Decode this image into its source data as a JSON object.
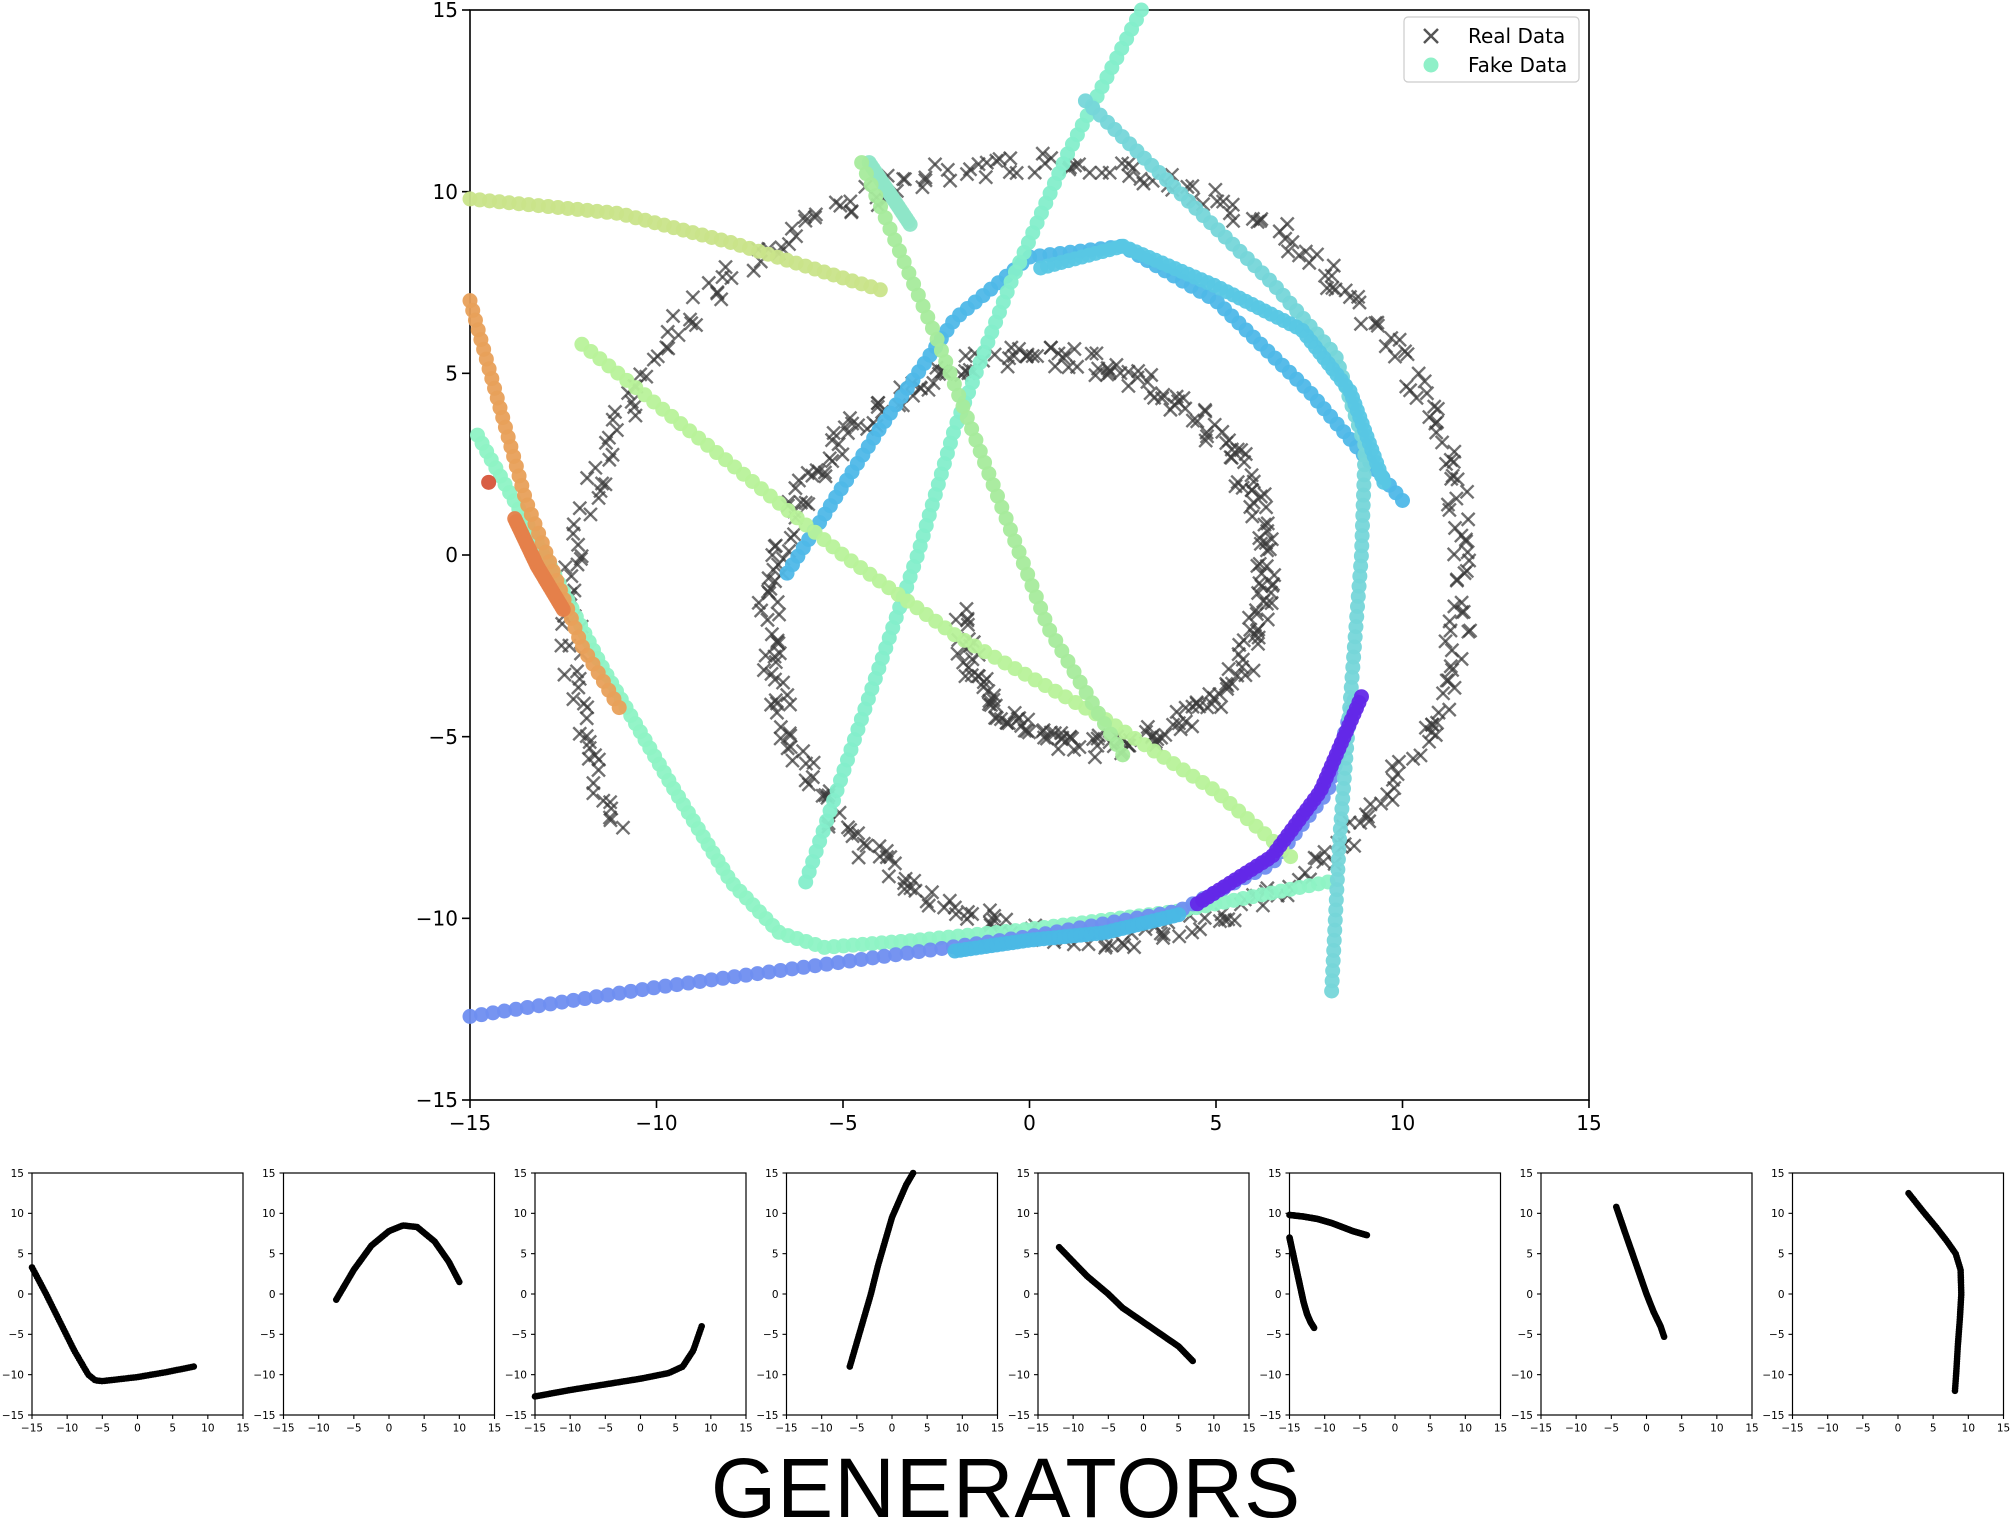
{
  "chart_data": [
    {
      "type": "scatter",
      "role": "main",
      "title": "",
      "xlabel": "",
      "ylabel": "",
      "xlim": [
        -15,
        15
      ],
      "ylim": [
        -15,
        15
      ],
      "xticks": [
        -15,
        -10,
        -5,
        0,
        5,
        10,
        15
      ],
      "yticks": [
        -15,
        -10,
        -5,
        0,
        5,
        10,
        15
      ],
      "grid": false,
      "legend": {
        "placement": "top-right",
        "entries": [
          {
            "name": "Real Data",
            "marker": "x",
            "color": "#555555"
          },
          {
            "name": "Fake Data",
            "marker": "o",
            "color": "#8ff0c8"
          }
        ]
      },
      "series": [
        {
          "name": "Real Data",
          "marker": "x",
          "color": "#3a3a3a",
          "shape": "spiral",
          "center": [
            1.0,
            -1.2
          ],
          "theta_range_rad": [
            3.3,
            16.2
          ],
          "radius_per_rad": 0.845,
          "jitter": 0.3,
          "count": 700
        },
        {
          "name": "Fake Data",
          "marker": "o",
          "generators": [
            {
              "color": "#8ef3c5",
              "points": [
                [
                  -14.8,
                  3.3
                ],
                [
                  -13,
                  0
                ],
                [
                  -11.5,
                  -3
                ],
                [
                  -9.5,
                  -6.5
                ],
                [
                  -8,
                  -9
                ],
                [
                  -6.7,
                  -10.4
                ],
                [
                  -5.5,
                  -10.8
                ],
                [
                  -3,
                  -10.6
                ],
                [
                  0,
                  -10.3
                ],
                [
                  4,
                  -9.8
                ],
                [
                  8,
                  -9
                ]
              ]
            },
            {
              "color": "#4fb8e8",
              "points": [
                [
                  -6.5,
                  -0.5
                ],
                [
                  -4,
                  3.5
                ],
                [
                  -2,
                  6.5
                ],
                [
                  0,
                  8.2
                ],
                [
                  2.5,
                  8.5
                ],
                [
                  5,
                  7
                ],
                [
                  7.5,
                  4.5
                ],
                [
                  10,
                  1.5
                ]
              ]
            },
            {
              "color": "#6f8ef0",
              "points": [
                [
                  -15,
                  -12.7
                ],
                [
                  -10,
                  -11.9
                ],
                [
                  -5,
                  -11.2
                ],
                [
                  0,
                  -10.5
                ],
                [
                  4,
                  -9.8
                ],
                [
                  6.5,
                  -8.5
                ],
                [
                  8,
                  -6.5
                ],
                [
                  8.7,
                  -4
                ]
              ]
            },
            {
              "color": "#84eecb",
              "points": [
                [
                  -6,
                  -9
                ],
                [
                  -5,
                  -6
                ],
                [
                  -4,
                  -3
                ],
                [
                  -3,
                  0
                ],
                [
                  -2,
                  3.5
                ],
                [
                  -0.5,
                  7.5
                ],
                [
                  1,
                  11
                ],
                [
                  3,
                  15
                ]
              ]
            },
            {
              "color": "#b8f29a",
              "points": [
                [
                  -12,
                  5.8
                ],
                [
                  -8,
                  2.5
                ],
                [
                  -5,
                  0
                ],
                [
                  -2,
                  -2.2
                ],
                [
                  2,
                  -4.5
                ],
                [
                  5,
                  -6.5
                ],
                [
                  7,
                  -8.3
                ]
              ]
            },
            {
              "color": "#c9e48a",
              "points": [
                [
                  -15,
                  9.8
                ],
                [
                  -11,
                  9.4
                ],
                [
                  -8,
                  8.6
                ],
                [
                  -4,
                  7.3
                ]
              ]
            },
            {
              "color": "#e8a05a",
              "points": [
                [
                  -15,
                  7
                ],
                [
                  -13.5,
                  1.5
                ],
                [
                  -12,
                  -2.5
                ],
                [
                  -11,
                  -4.2
                ]
              ]
            },
            {
              "color": "#8ee6c8",
              "points": [
                [
                  -4.3,
                  10.8
                ],
                [
                  -3.2,
                  9.1
                ]
              ]
            },
            {
              "color": "#76d6d9",
              "points": [
                [
                  1.5,
                  12.5
                ],
                [
                  4,
                  10
                ],
                [
                  6.5,
                  7.5
                ],
                [
                  8.2,
                  5.5
                ],
                [
                  9,
                  3
                ],
                [
                  8.9,
                  0
                ],
                [
                  8.6,
                  -4
                ],
                [
                  8.3,
                  -8
                ],
                [
                  8.1,
                  -12
                ]
              ]
            },
            {
              "color": "#a6eb9c",
              "points": [
                [
                  -4.5,
                  10.8
                ],
                [
                  -2.5,
                  6
                ],
                [
                  -1,
                  2
                ],
                [
                  0.5,
                  -2
                ],
                [
                  2.5,
                  -5.5
                ]
              ]
            },
            {
              "color": "#6328e8",
              "points": [
                [
                  4.5,
                  -9.6
                ],
                [
                  6.5,
                  -8.3
                ],
                [
                  7.8,
                  -6.5
                ],
                [
                  8.9,
                  -3.9
                ]
              ]
            },
            {
              "color": "#d6553a",
              "points": [
                [
                  -14.5,
                  2
                ]
              ]
            },
            {
              "color": "#e5804a",
              "points": [
                [
                  -13.8,
                  1
                ],
                [
                  -13.2,
                  -0.3
                ],
                [
                  -12.5,
                  -1.5
                ]
              ]
            },
            {
              "color": "#4ab8e5",
              "points": [
                [
                  -2,
                  -10.9
                ],
                [
                  0,
                  -10.6
                ],
                [
                  2,
                  -10.4
                ],
                [
                  4,
                  -9.9
                ]
              ]
            },
            {
              "color": "#58c7e4",
              "points": [
                [
                  0.3,
                  7.9
                ],
                [
                  2.5,
                  8.5
                ],
                [
                  5,
                  7.4
                ],
                [
                  7.3,
                  6.2
                ],
                [
                  8.6,
                  4.5
                ],
                [
                  9.5,
                  2
                ]
              ]
            }
          ]
        }
      ]
    },
    {
      "type": "line",
      "role": "generator",
      "xlim": [
        -15,
        15
      ],
      "ylim": [
        -15,
        15
      ],
      "xticks": [
        -15,
        -10,
        -5,
        0,
        5,
        10,
        15
      ],
      "yticks": [
        -15,
        -10,
        -5,
        0,
        5,
        10,
        15
      ],
      "series": [
        {
          "name": "",
          "points": [
            [
              -15,
              3.3
            ],
            [
              -13,
              0
            ],
            [
              -11,
              -3.5
            ],
            [
              -9,
              -7
            ],
            [
              -7,
              -10
            ],
            [
              -6,
              -10.7
            ],
            [
              -5,
              -10.8
            ],
            [
              -3,
              -10.6
            ],
            [
              0,
              -10.3
            ],
            [
              4,
              -9.7
            ],
            [
              8,
              -9
            ]
          ]
        }
      ]
    },
    {
      "type": "line",
      "role": "generator",
      "xlim": [
        -15,
        15
      ],
      "ylim": [
        -15,
        15
      ],
      "xticks": [
        -15,
        -10,
        -5,
        0,
        5,
        10,
        15
      ],
      "yticks": [
        -15,
        -10,
        -5,
        0,
        5,
        10,
        15
      ],
      "series": [
        {
          "name": "",
          "points": [
            [
              -7.5,
              -0.7
            ],
            [
              -5,
              3
            ],
            [
              -2.5,
              6
            ],
            [
              0,
              7.8
            ],
            [
              2,
              8.5
            ],
            [
              4,
              8.3
            ],
            [
              6.5,
              6.5
            ],
            [
              8.5,
              4
            ],
            [
              10,
              1.5
            ]
          ]
        }
      ]
    },
    {
      "type": "line",
      "role": "generator",
      "xlim": [
        -15,
        15
      ],
      "ylim": [
        -15,
        15
      ],
      "xticks": [
        -15,
        -10,
        -5,
        0,
        5,
        10,
        15
      ],
      "yticks": [
        -15,
        -10,
        -5,
        0,
        5,
        10,
        15
      ],
      "series": [
        {
          "name": "",
          "points": [
            [
              -15,
              -12.7
            ],
            [
              -10,
              -11.9
            ],
            [
              -5,
              -11.2
            ],
            [
              0,
              -10.5
            ],
            [
              4,
              -9.8
            ],
            [
              6,
              -9
            ],
            [
              7.5,
              -7
            ],
            [
              8.3,
              -5
            ],
            [
              8.7,
              -4
            ]
          ]
        }
      ]
    },
    {
      "type": "line",
      "role": "generator",
      "xlim": [
        -15,
        15
      ],
      "ylim": [
        -15,
        15
      ],
      "xticks": [
        -15,
        -10,
        -5,
        0,
        5,
        10,
        15
      ],
      "yticks": [
        -15,
        -10,
        -5,
        0,
        5,
        10,
        15
      ],
      "series": [
        {
          "name": "",
          "points": [
            [
              -6,
              -9
            ],
            [
              -5,
              -6
            ],
            [
              -4,
              -3
            ],
            [
              -3,
              0
            ],
            [
              -2,
              3.5
            ],
            [
              -1,
              6.5
            ],
            [
              0,
              9.5
            ],
            [
              1,
              11.5
            ],
            [
              2,
              13.5
            ],
            [
              3,
              15
            ]
          ]
        }
      ]
    },
    {
      "type": "line",
      "role": "generator",
      "xlim": [
        -15,
        15
      ],
      "ylim": [
        -15,
        15
      ],
      "xticks": [
        -15,
        -10,
        -5,
        0,
        5,
        10,
        15
      ],
      "yticks": [
        -15,
        -10,
        -5,
        0,
        5,
        10,
        15
      ],
      "series": [
        {
          "name": "",
          "points": [
            [
              -12,
              5.8
            ],
            [
              -10,
              4
            ],
            [
              -8,
              2.2
            ],
            [
              -5,
              0
            ],
            [
              -3,
              -1.7
            ],
            [
              0,
              -3.5
            ],
            [
              3,
              -5.3
            ],
            [
              5,
              -6.5
            ],
            [
              7,
              -8.3
            ]
          ]
        }
      ]
    },
    {
      "type": "line",
      "role": "generator",
      "xlim": [
        -15,
        15
      ],
      "ylim": [
        -15,
        15
      ],
      "xticks": [
        -15,
        -10,
        -5,
        0,
        5,
        10,
        15
      ],
      "yticks": [
        -15,
        -10,
        -5,
        0,
        5,
        10,
        15
      ],
      "series": [
        {
          "name": "",
          "points": [
            [
              -15,
              9.8
            ],
            [
              -13,
              9.6
            ],
            [
              -11,
              9.3
            ],
            [
              -9,
              8.8
            ],
            [
              -7.5,
              8.3
            ],
            [
              -6,
              7.8
            ],
            [
              -4,
              7.3
            ]
          ]
        },
        {
          "name": "",
          "points": [
            [
              -15,
              7
            ],
            [
              -14.5,
              5
            ],
            [
              -14,
              3
            ],
            [
              -13.5,
              1
            ],
            [
              -13,
              -1
            ],
            [
              -12.5,
              -2.5
            ],
            [
              -12,
              -3.5
            ],
            [
              -11.5,
              -4.2
            ]
          ]
        }
      ]
    },
    {
      "type": "line",
      "role": "generator",
      "xlim": [
        -15,
        15
      ],
      "ylim": [
        -15,
        15
      ],
      "xticks": [
        -15,
        -10,
        -5,
        0,
        5,
        10,
        15
      ],
      "yticks": [
        -15,
        -10,
        -5,
        0,
        5,
        10,
        15
      ],
      "series": [
        {
          "name": "",
          "points": [
            [
              -4.3,
              10.8
            ],
            [
              -3,
              7.5
            ],
            [
              -2,
              5
            ],
            [
              -1,
              2.5
            ],
            [
              0,
              0
            ],
            [
              1,
              -2.2
            ],
            [
              2,
              -4
            ],
            [
              2.5,
              -5.3
            ]
          ]
        }
      ]
    },
    {
      "type": "line",
      "role": "generator",
      "xlim": [
        -15,
        15
      ],
      "ylim": [
        -15,
        15
      ],
      "xticks": [
        -15,
        -10,
        -5,
        0,
        5,
        10,
        15
      ],
      "yticks": [
        -15,
        -10,
        -5,
        0,
        5,
        10,
        15
      ],
      "series": [
        {
          "name": "",
          "points": [
            [
              1.5,
              12.5
            ],
            [
              3.5,
              10.3
            ],
            [
              5.5,
              8.2
            ],
            [
              7,
              6.5
            ],
            [
              8.2,
              5
            ],
            [
              8.9,
              3
            ],
            [
              9,
              0
            ],
            [
              8.8,
              -3
            ],
            [
              8.5,
              -6.5
            ],
            [
              8.3,
              -9.5
            ],
            [
              8.1,
              -12
            ]
          ]
        }
      ]
    }
  ],
  "footer": {
    "title": "GENERATORS"
  }
}
